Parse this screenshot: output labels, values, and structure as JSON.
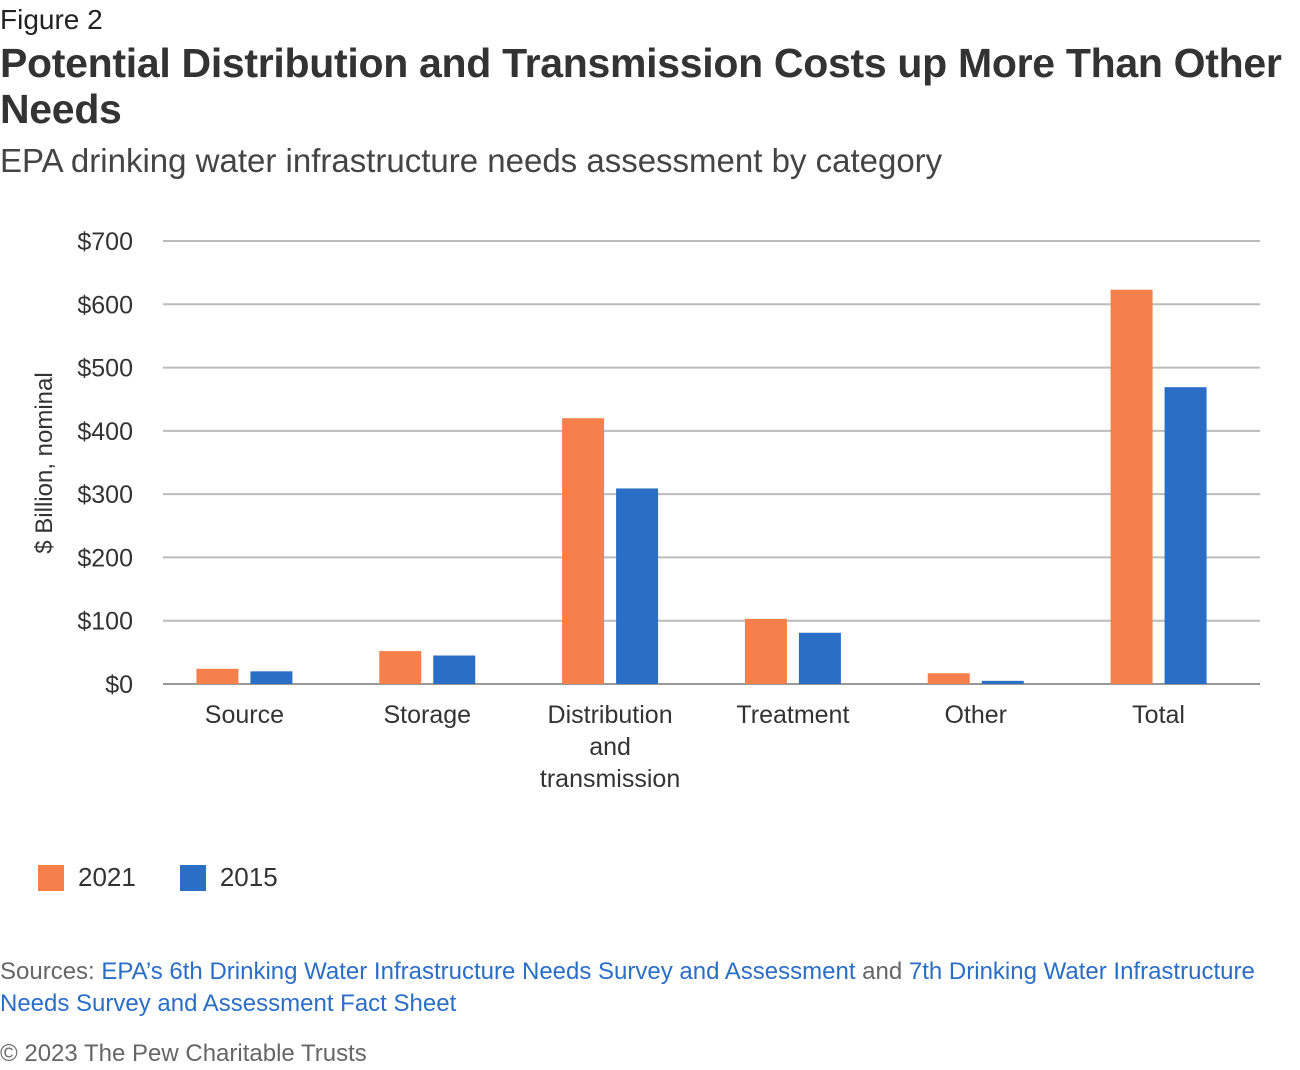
{
  "header": {
    "figure_label": "Figure 2",
    "title": "Potential Distribution and Transmission Costs up More Than Other Needs",
    "subtitle": "EPA drinking water infrastructure needs assessment by category"
  },
  "chart_data": {
    "type": "bar",
    "title": "Potential Distribution and Transmission Costs up More Than Other Needs",
    "subtitle": "EPA drinking water infrastructure needs assessment by category",
    "xlabel": "",
    "ylabel": "$ Billion, nominal",
    "ylim": [
      0,
      700
    ],
    "yticks": [
      0,
      100,
      200,
      300,
      400,
      500,
      600,
      700
    ],
    "ytick_labels": [
      "$0",
      "$100",
      "$200",
      "$300",
      "$400",
      "$500",
      "$600",
      "$700"
    ],
    "categories": [
      [
        "Source"
      ],
      [
        "Storage"
      ],
      [
        "Distribution",
        "and",
        "transmission"
      ],
      [
        "Treatment"
      ],
      [
        "Other"
      ],
      [
        "Total"
      ]
    ],
    "series": [
      {
        "name": "2021",
        "color": "#f5804b",
        "values": [
          24,
          52,
          420,
          103,
          17,
          623
        ]
      },
      {
        "name": "2015",
        "color": "#2a6ec6",
        "values": [
          20,
          45,
          309,
          81,
          5,
          469
        ]
      }
    ],
    "grid": true,
    "legend": "bottom-left"
  },
  "legend": {
    "items": [
      {
        "label": "2021",
        "color": "#f5804b"
      },
      {
        "label": "2015",
        "color": "#2a6ec6"
      }
    ]
  },
  "footer": {
    "sources_prefix": "Sources: ",
    "source_link_1": "EPA’s 6th Drinking Water Infrastructure Needs Survey and Assessment",
    "sources_and": " and ",
    "source_link_2": "7th Drinking Water Infrastructure Needs Survey and Assessment Fact Sheet",
    "copyright": "© 2023 The Pew Charitable Trusts"
  }
}
